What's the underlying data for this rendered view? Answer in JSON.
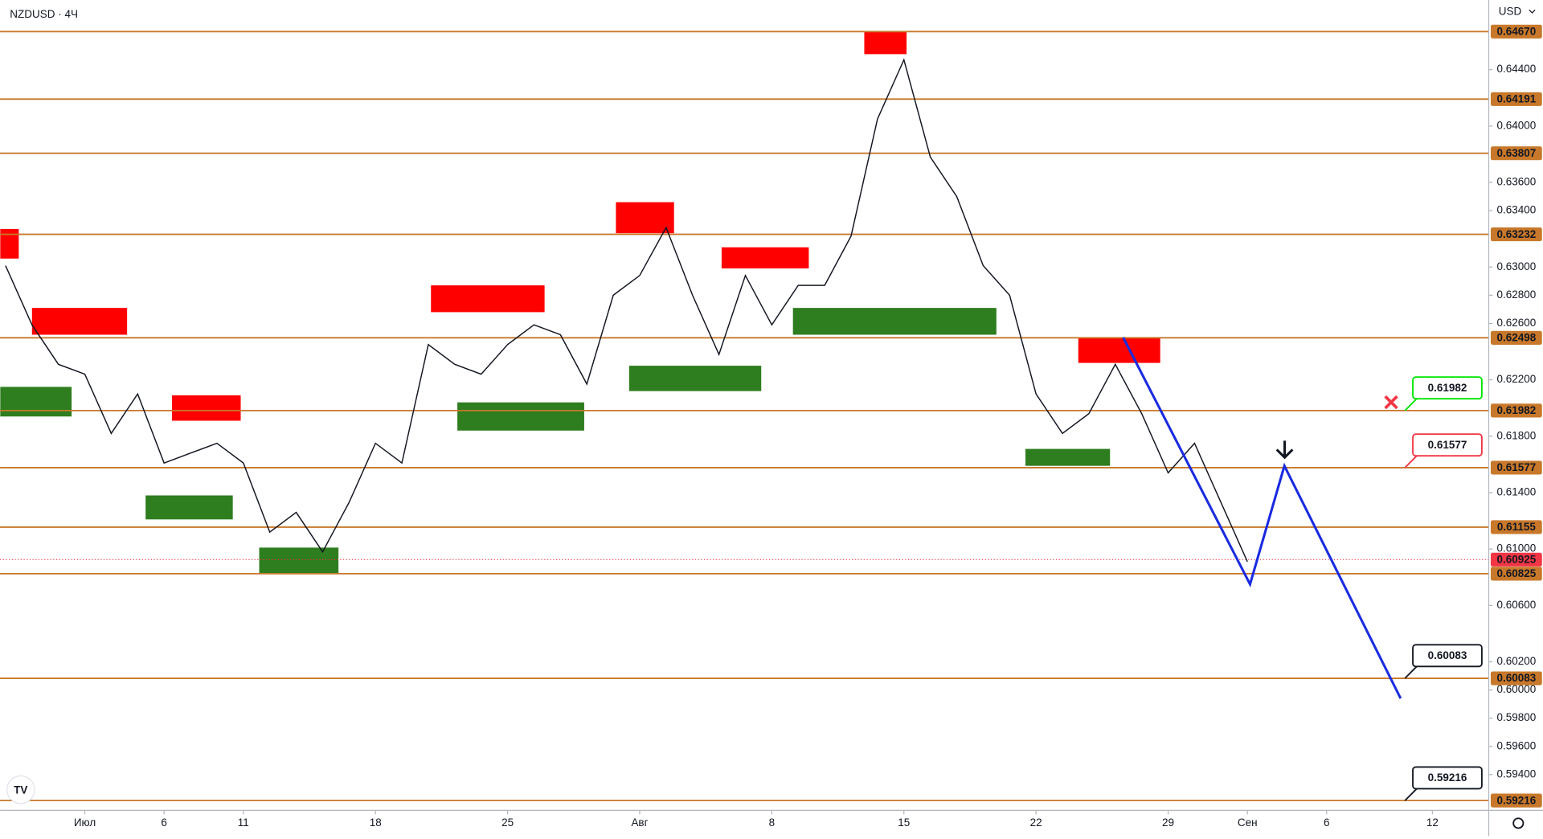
{
  "chart_data": {
    "type": "line",
    "title": "NZDUSD · 4Ч",
    "currency": "USD",
    "color": "#131722",
    "x": [
      -3,
      -2,
      -1,
      0,
      1,
      2,
      3,
      4,
      5,
      6,
      7,
      8,
      9,
      10,
      11,
      12,
      13,
      14,
      15,
      16,
      17,
      18,
      19,
      20,
      21,
      22,
      23,
      24,
      25,
      26,
      27,
      28,
      29,
      30,
      31,
      32,
      33,
      34,
      35,
      36,
      37,
      38,
      39,
      40,
      41,
      42,
      43,
      44
    ],
    "values": [
      0.6301,
      0.6259,
      0.6231,
      0.6224,
      0.6182,
      0.621,
      0.6161,
      0.6168,
      0.6175,
      0.6161,
      0.6112,
      0.6126,
      0.6098,
      0.6133,
      0.6175,
      0.6161,
      0.6245,
      0.6231,
      0.6224,
      0.6245,
      0.6259,
      0.6252,
      0.6217,
      0.628,
      0.6294,
      0.6328,
      0.628,
      0.6238,
      0.6294,
      0.6259,
      0.6287,
      0.6287,
      0.6322,
      0.6405,
      0.6447,
      0.6378,
      0.635,
      0.6301,
      0.628,
      0.621,
      0.6182,
      0.6196,
      0.6231,
      0.6196,
      0.6154,
      0.6175,
      0.6133,
      0.6091
    ],
    "xlim": [
      -3.209,
      53.134
    ],
    "ylim": [
      0.59146,
      0.64894
    ],
    "xticks": [
      {
        "value": 0,
        "label": "Июл"
      },
      {
        "value": 3,
        "label": "6"
      },
      {
        "value": 6,
        "label": "11"
      },
      {
        "value": 11,
        "label": "18"
      },
      {
        "value": 16,
        "label": "25"
      },
      {
        "value": 21,
        "label": "Авг"
      },
      {
        "value": 26,
        "label": "8"
      },
      {
        "value": 31,
        "label": "15"
      },
      {
        "value": 36,
        "label": "22"
      },
      {
        "value": 41,
        "label": "29"
      },
      {
        "value": 44,
        "label": "Сен"
      },
      {
        "value": 47,
        "label": "6"
      },
      {
        "value": 51,
        "label": "12"
      }
    ],
    "yticks": [
      {
        "value": 0.644,
        "label": "0.64400"
      },
      {
        "value": 0.64,
        "label": "0.64000"
      },
      {
        "value": 0.636,
        "label": "0.63600"
      },
      {
        "value": 0.634,
        "label": "0.63400"
      },
      {
        "value": 0.63,
        "label": "0.63000"
      },
      {
        "value": 0.628,
        "label": "0.62800"
      },
      {
        "value": 0.626,
        "label": "0.62600"
      },
      {
        "value": 0.622,
        "label": "0.62200"
      },
      {
        "value": 0.618,
        "label": "0.61800"
      },
      {
        "value": 0.614,
        "label": "0.61400"
      },
      {
        "value": 0.61,
        "label": "0.61000"
      },
      {
        "value": 0.606,
        "label": "0.60600"
      },
      {
        "value": 0.602,
        "label": "0.60200"
      },
      {
        "value": 0.6,
        "label": "0.60000"
      },
      {
        "value": 0.598,
        "label": "0.59800"
      },
      {
        "value": 0.596,
        "label": "0.59600"
      },
      {
        "value": 0.594,
        "label": "0.59400"
      }
    ],
    "levels": {
      "color": "#c8782a",
      "values": [
        {
          "value": 0.6467,
          "label": "0.64670"
        },
        {
          "value": 0.64191,
          "label": "0.64191"
        },
        {
          "value": 0.63807,
          "label": "0.63807"
        },
        {
          "value": 0.63232,
          "label": "0.63232"
        },
        {
          "value": 0.62498,
          "label": "0.62498"
        },
        {
          "value": 0.61982,
          "label": "0.61982"
        },
        {
          "value": 0.61577,
          "label": "0.61577"
        },
        {
          "value": 0.61155,
          "label": "0.61155"
        },
        {
          "value": 0.60825,
          "label": "0.60825"
        },
        {
          "value": 0.60083,
          "label": "0.60083"
        },
        {
          "value": 0.59216,
          "label": "0.59216"
        }
      ]
    },
    "current_price": {
      "value": 0.60925,
      "label": "0.60925",
      "color": "#f23645"
    },
    "zones": [
      {
        "x0": -3.2,
        "x1": -2.5,
        "y0": 0.6306,
        "y1": 0.6327,
        "color": "#ff0000"
      },
      {
        "x0": -2.0,
        "x1": 1.6,
        "y0": 0.6252,
        "y1": 0.6271,
        "color": "#ff0000"
      },
      {
        "x0": 3.3,
        "x1": 5.9,
        "y0": 0.6191,
        "y1": 0.6209,
        "color": "#ff0000"
      },
      {
        "x0": 13.1,
        "x1": 17.4,
        "y0": 0.6268,
        "y1": 0.6287,
        "color": "#ff0000"
      },
      {
        "x0": 20.1,
        "x1": 22.3,
        "y0": 0.6324,
        "y1": 0.6346,
        "color": "#ff0000"
      },
      {
        "x0": 24.1,
        "x1": 27.4,
        "y0": 0.6299,
        "y1": 0.6314,
        "color": "#ff0000"
      },
      {
        "x0": 29.5,
        "x1": 31.1,
        "y0": 0.6451,
        "y1": 0.6467,
        "color": "#ff0000"
      },
      {
        "x0": 37.6,
        "x1": 40.7,
        "y0": 0.6232,
        "y1": 0.625,
        "color": "#ff0000"
      },
      {
        "x0": -3.2,
        "x1": -0.5,
        "y0": 0.6194,
        "y1": 0.6215,
        "color": "#2e7d1e"
      },
      {
        "x0": 2.3,
        "x1": 5.6,
        "y0": 0.6121,
        "y1": 0.6138,
        "color": "#2e7d1e"
      },
      {
        "x0": 6.6,
        "x1": 9.6,
        "y0": 0.6083,
        "y1": 0.6101,
        "color": "#2e7d1e"
      },
      {
        "x0": 14.1,
        "x1": 18.9,
        "y0": 0.6184,
        "y1": 0.6204,
        "color": "#2e7d1e"
      },
      {
        "x0": 20.6,
        "x1": 25.6,
        "y0": 0.6212,
        "y1": 0.623,
        "color": "#2e7d1e"
      },
      {
        "x0": 26.8,
        "x1": 34.5,
        "y0": 0.6252,
        "y1": 0.6271,
        "color": "#2e7d1e"
      },
      {
        "x0": 35.6,
        "x1": 38.8,
        "y0": 0.6159,
        "y1": 0.6171,
        "color": "#2e7d1e"
      }
    ],
    "projection": {
      "color": "#1a2be0",
      "x": [
        39.3,
        44.1,
        45.4,
        49.8
      ],
      "values": [
        0.625,
        0.6075,
        0.6159,
        0.5994
      ]
    },
    "annotations": [
      {
        "value": 0.61982,
        "label": "0.61982",
        "color": "#00e600"
      },
      {
        "value": 0.61577,
        "label": "0.61577",
        "color": "#f23645"
      },
      {
        "value": 0.60083,
        "label": "0.60083",
        "color": "#131722"
      },
      {
        "value": 0.59216,
        "label": "0.59216",
        "color": "#131722"
      }
    ]
  }
}
